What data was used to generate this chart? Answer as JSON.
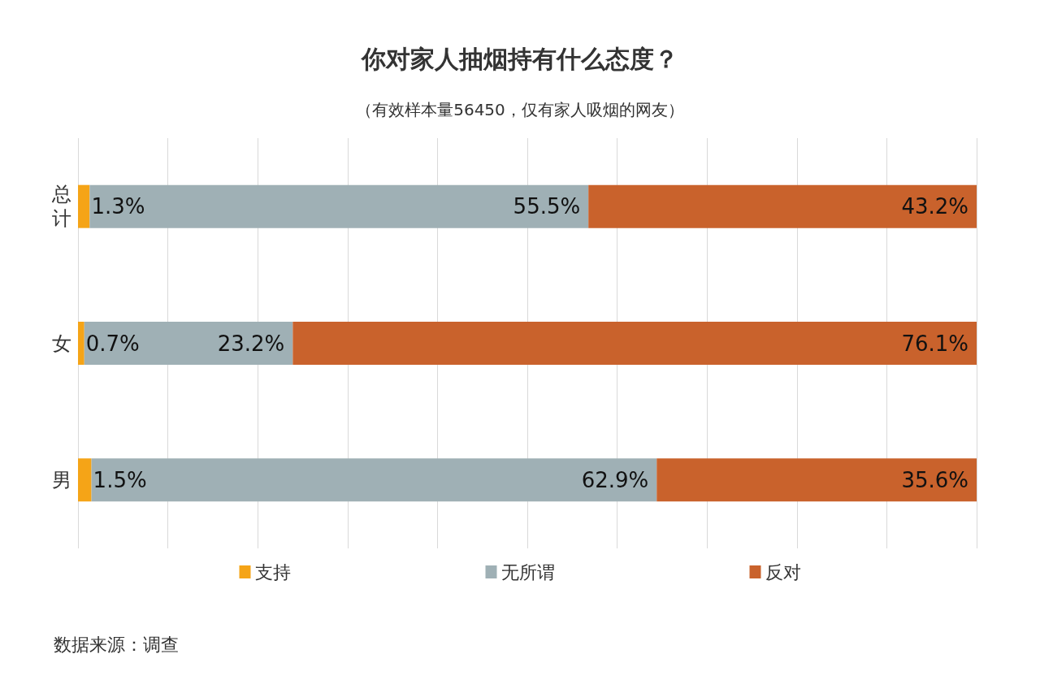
{
  "chart_data": {
    "type": "bar",
    "orientation": "horizontal",
    "stacked": true,
    "title": "你对家人抽烟持有什么态度？",
    "subtitle": "（有效样本量56450，仅有家人吸烟的网友）",
    "categories": [
      "总计",
      "女",
      "男"
    ],
    "series": [
      {
        "name": "支持",
        "color": "#f5a417",
        "values": [
          1.3,
          0.7,
          1.5
        ],
        "value_labels": [
          "1.3%",
          "0.7%",
          "1.5%"
        ]
      },
      {
        "name": "无所谓",
        "color": "#9fb0b5",
        "values": [
          55.5,
          23.2,
          62.9
        ],
        "value_labels": [
          "55.5%",
          "23.2%",
          "62.9%"
        ]
      },
      {
        "name": "反对",
        "color": "#c9622c",
        "values": [
          43.2,
          76.1,
          35.6
        ],
        "value_labels": [
          "43.2%",
          "76.1%",
          "35.6%"
        ]
      }
    ],
    "xlim": [
      0,
      100
    ],
    "xticks": [
      {
        "value": 0,
        "label": null
      },
      {
        "value": 10,
        "label": null
      },
      {
        "value": 20,
        "label": null
      },
      {
        "value": 30,
        "label": null
      },
      {
        "value": 40,
        "label": null
      },
      {
        "value": 50,
        "label": null
      },
      {
        "value": 60,
        "label": null
      },
      {
        "value": 70,
        "label": null
      },
      {
        "value": 80,
        "label": null
      },
      {
        "value": 90,
        "label": null
      },
      {
        "value": 100,
        "label": null
      }
    ],
    "grid": "x",
    "legend": "bottom",
    "tick_labels": "y",
    "annotations": [
      "数据来源：调查"
    ]
  }
}
